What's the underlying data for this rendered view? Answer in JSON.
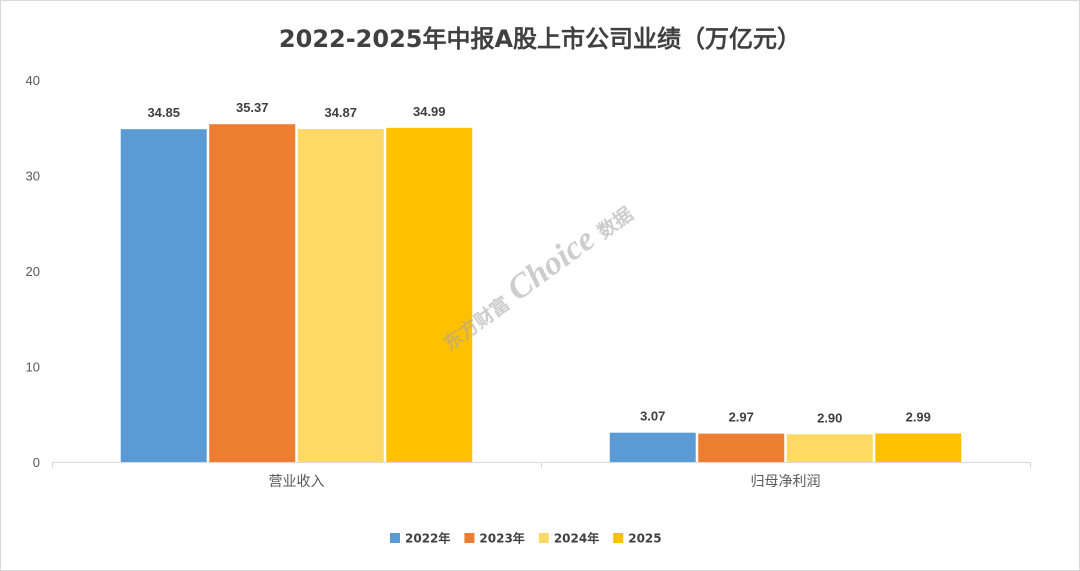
{
  "watermark": {
    "prefix": "东方财富",
    "brand": "Choice",
    "suffix": "数据"
  },
  "chart_data": {
    "type": "bar",
    "title": "2022-2025年中报A股上市公司业绩（万亿元）",
    "xlabel": "",
    "ylabel": "",
    "categories": [
      "营业收入",
      "归母净利润"
    ],
    "series": [
      {
        "name": "2022年",
        "values": [
          34.85,
          3.07
        ],
        "color": "#5B9BD5"
      },
      {
        "name": "2023年",
        "values": [
          35.37,
          2.97
        ],
        "color": "#ED7D31"
      },
      {
        "name": "2024年",
        "values": [
          34.87,
          2.9
        ],
        "color": "#FFD966"
      },
      {
        "name": "2025",
        "values": [
          34.99,
          2.99
        ],
        "color": "#FFC000"
      }
    ],
    "ylim": [
      0,
      40
    ],
    "yticks": [
      0,
      10,
      20,
      30,
      40
    ],
    "grid": false,
    "legend": "bottom"
  }
}
